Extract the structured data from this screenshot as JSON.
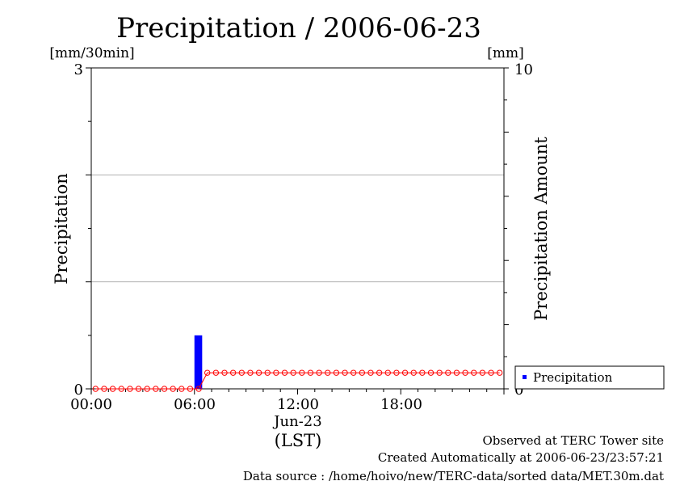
{
  "chart_data": {
    "type": "bar+line",
    "title": "Precipitation / 2006-06-23",
    "left_unit": "[mm/30min]",
    "right_unit": "[mm]",
    "ylabel_left": "Precipitation",
    "ylabel_right": "Precipitation Amount",
    "ylim_left": [
      0,
      3
    ],
    "ylim_right": [
      0,
      10
    ],
    "y_ticks_left": [
      "0",
      "3"
    ],
    "y_ticks_right": [
      "0",
      "10"
    ],
    "x_tick_labels": [
      "00:00",
      "06:00",
      "12:00",
      "18:00"
    ],
    "x_date_label": "Jun-23",
    "x_unit_label": "(LST)",
    "grid_y": [
      1,
      2
    ],
    "legend": {
      "label": "Precipitation",
      "placement": "bottom-right outside plot",
      "color": "#0000ff"
    },
    "bars": [
      {
        "time": "06:00",
        "value": 0.5
      }
    ],
    "cumulative_series": {
      "color": "#ff0000",
      "marker": "open-circle",
      "times": [
        "00:00",
        "00:30",
        "01:00",
        "01:30",
        "02:00",
        "02:30",
        "03:00",
        "03:30",
        "04:00",
        "04:30",
        "05:00",
        "05:30",
        "06:00",
        "06:30",
        "07:00",
        "07:30",
        "08:00",
        "08:30",
        "09:00",
        "09:30",
        "10:00",
        "10:30",
        "11:00",
        "11:30",
        "12:00",
        "12:30",
        "13:00",
        "13:30",
        "14:00",
        "14:30",
        "15:00",
        "15:30",
        "16:00",
        "16:30",
        "17:00",
        "17:30",
        "18:00",
        "18:30",
        "19:00",
        "19:30",
        "20:00",
        "20:30",
        "21:00",
        "21:30",
        "22:00",
        "22:30",
        "23:00",
        "23:30"
      ],
      "values": [
        0,
        0,
        0,
        0,
        0,
        0,
        0,
        0,
        0,
        0,
        0,
        0,
        0,
        0.5,
        0.5,
        0.5,
        0.5,
        0.5,
        0.5,
        0.5,
        0.5,
        0.5,
        0.5,
        0.5,
        0.5,
        0.5,
        0.5,
        0.5,
        0.5,
        0.5,
        0.5,
        0.5,
        0.5,
        0.5,
        0.5,
        0.5,
        0.5,
        0.5,
        0.5,
        0.5,
        0.5,
        0.5,
        0.5,
        0.5,
        0.5,
        0.5,
        0.5,
        0.5
      ]
    }
  },
  "footer": {
    "line1": "Observed at TERC Tower site",
    "line2": "Created Automatically at 2006-06-23/23:57:21",
    "line3": "Data source : /home/hoivo/new/TERC-data/sorted  data/MET.30m.dat"
  }
}
